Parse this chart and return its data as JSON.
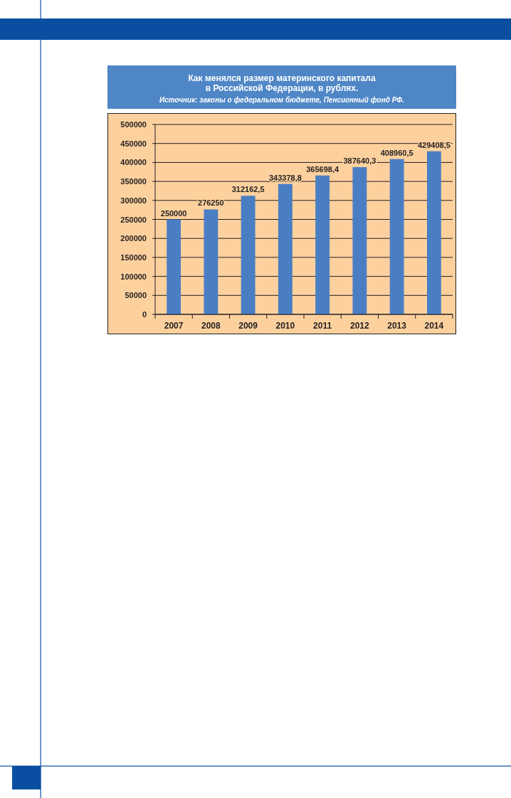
{
  "chart_data": {
    "type": "bar",
    "title": "Как менялся размер материнского капитала в Российской Федерации, в рублях.",
    "annotations": [
      "Источник: законы о федеральном бюджете, Пенсионный фонд РФ."
    ],
    "categories": [
      "2007",
      "2008",
      "2009",
      "2010",
      "2011",
      "2012",
      "2013",
      "2014"
    ],
    "values": [
      250000,
      276250,
      312162.5,
      343378.8,
      365698.4,
      387640.3,
      408960.5,
      429408.5
    ],
    "value_labels": [
      "250000",
      "276250",
      "312162,5",
      "343378,8",
      "365698,4",
      "387640,3",
      "408960,5",
      "429408,5"
    ],
    "color": "#4a7ec3",
    "ylim": [
      0,
      500000
    ],
    "yticks": [
      0,
      50000,
      100000,
      150000,
      200000,
      250000,
      300000,
      350000,
      400000,
      450000,
      500000
    ],
    "grid": "y"
  }
}
